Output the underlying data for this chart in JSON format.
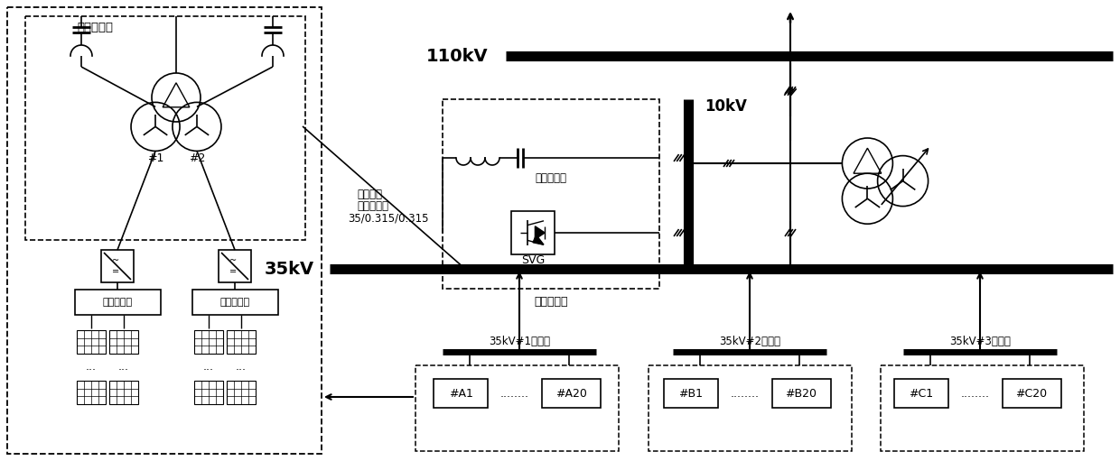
{
  "bg_color": "#ffffff",
  "lc": "#000000",
  "label_yijilvbozhan": "一级滤波站",
  "label_jicheng1": "集成滤波",
  "label_jicheng2": "筱式变压器",
  "label_jicheng3": "35/0.315/0.315",
  "label_wuyuan": "无源滤波器",
  "label_svg": "SVG",
  "label_erjilvbozhan": "二级滤波站",
  "label_110kV": "110kV",
  "label_10kV": "10kV",
  "label_35kV": "35kV",
  "label_busA": "35kV#1汇集线",
  "label_busB": "35kV#2汇集线",
  "label_busC": "35kV#3汇集线",
  "label_hash1": "#1",
  "label_hash2": "#2",
  "label_A1": "#A1",
  "label_A20": "#A20",
  "label_B1": "#B1",
  "label_B20": "#B20",
  "label_C1": "#C1",
  "label_C20": "#C20",
  "label_zhiliuhui1": "直流汇流筱",
  "label_zhiliuhui2": "直流汇流筱"
}
